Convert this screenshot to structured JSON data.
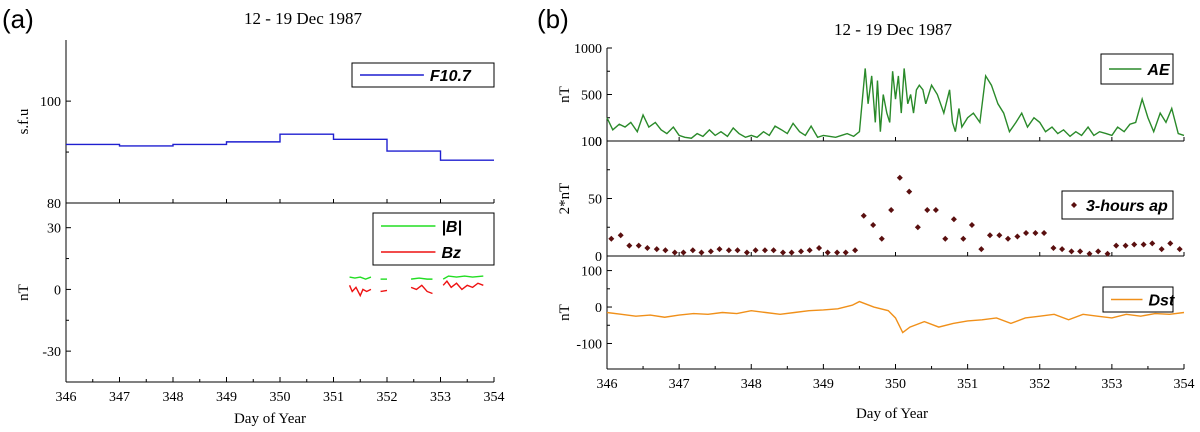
{
  "panels": [
    {
      "letter": "(a)",
      "title": "12 - 19 Dec 1987",
      "xlabel": "Day of Year"
    },
    {
      "letter": "(b)",
      "title": "12 - 19 Dec 1987",
      "xlabel": "Day of Year"
    }
  ],
  "chart_data": [
    {
      "type": "line",
      "panel": "a",
      "ylabel": "s.f.u",
      "xlim": [
        346,
        354
      ],
      "ylim": [
        80,
        112
      ],
      "yticks": [
        80,
        100
      ],
      "legend_position": "top-right",
      "series": [
        {
          "name": "F10.7",
          "color": "#1f1fd0",
          "x": [
            346,
            347,
            347,
            348,
            348,
            349,
            349,
            350,
            350,
            351,
            351,
            352,
            352,
            353,
            353,
            354
          ],
          "y": [
            91.5,
            91.5,
            91.2,
            91.2,
            91.5,
            91.5,
            92,
            92,
            93.5,
            93.5,
            92.5,
            92.5,
            90.2,
            90.2,
            88.4,
            88.4
          ]
        }
      ]
    },
    {
      "type": "line",
      "panel": "a",
      "ylabel": "nT",
      "xlim": [
        346,
        354
      ],
      "ylim": [
        -45,
        42
      ],
      "yticks": [
        -30,
        0,
        30
      ],
      "legend_position": "top-right",
      "series": [
        {
          "name": "|B|",
          "color": "#22dd22",
          "segments": [
            {
              "x": [
                351.3,
                351.4,
                351.5,
                351.6,
                351.7
              ],
              "y": [
                6,
                5.5,
                6,
                5,
                6
              ]
            },
            {
              "x": [
                351.88,
                352.0
              ],
              "y": [
                5,
                5
              ]
            },
            {
              "x": [
                352.45,
                352.6,
                352.75,
                352.85
              ],
              "y": [
                5,
                5.5,
                5,
                5
              ]
            },
            {
              "x": [
                353.05,
                353.15,
                353.3,
                353.45,
                353.6,
                353.8
              ],
              "y": [
                5,
                6.5,
                6,
                6.5,
                6,
                6.5
              ]
            }
          ]
        },
        {
          "name": "Bz",
          "color": "#ee1111",
          "segments": [
            {
              "x": [
                351.3,
                351.35,
                351.42,
                351.5,
                351.55,
                351.62,
                351.7
              ],
              "y": [
                2,
                -1,
                1,
                -3,
                0,
                -1,
                0
              ]
            },
            {
              "x": [
                351.88,
                352.0
              ],
              "y": [
                -1,
                -0.5
              ]
            },
            {
              "x": [
                352.45,
                352.55,
                352.65,
                352.75,
                352.85
              ],
              "y": [
                1,
                0,
                2,
                -1,
                -2
              ]
            },
            {
              "x": [
                353.05,
                353.12,
                353.2,
                353.3,
                353.4,
                353.5,
                353.6,
                353.7,
                353.8
              ],
              "y": [
                2,
                4,
                1,
                3,
                0,
                2,
                1,
                3,
                2
              ]
            }
          ]
        }
      ]
    },
    {
      "type": "line",
      "panel": "b",
      "ylabel": "nT",
      "xlim": [
        346,
        354
      ],
      "ylim": [
        0,
        1000
      ],
      "yticks": [
        0,
        500,
        1000
      ],
      "legend_position": "top-right",
      "series": [
        {
          "name": "AE",
          "color": "#2a8a2a",
          "x": [
            346.0,
            346.08,
            346.17,
            346.25,
            346.33,
            346.42,
            346.5,
            346.58,
            346.67,
            346.75,
            346.83,
            346.92,
            347.0,
            347.08,
            347.17,
            347.25,
            347.33,
            347.42,
            347.5,
            347.58,
            347.67,
            347.75,
            347.83,
            347.92,
            348.0,
            348.08,
            348.17,
            348.25,
            348.33,
            348.42,
            348.5,
            348.58,
            348.67,
            348.75,
            348.83,
            348.92,
            349.0,
            349.08,
            349.17,
            349.25,
            349.33,
            349.42,
            349.5,
            349.58,
            349.62,
            349.67,
            349.72,
            349.75,
            349.79,
            349.83,
            349.88,
            349.92,
            349.96,
            350.0,
            350.04,
            350.08,
            350.12,
            350.17,
            350.21,
            350.25,
            350.29,
            350.33,
            350.38,
            350.42,
            350.5,
            350.58,
            350.67,
            350.75,
            350.79,
            350.83,
            350.88,
            350.92,
            351.0,
            351.08,
            351.17,
            351.25,
            351.33,
            351.42,
            351.5,
            351.58,
            351.67,
            351.75,
            351.83,
            351.92,
            352.0,
            352.08,
            352.17,
            352.25,
            352.33,
            352.42,
            352.5,
            352.58,
            352.67,
            352.75,
            352.83,
            352.92,
            353.0,
            353.08,
            353.17,
            353.25,
            353.33,
            353.42,
            353.5,
            353.58,
            353.67,
            353.75,
            353.83,
            353.92,
            354.0
          ],
          "y": [
            250,
            120,
            180,
            150,
            200,
            100,
            280,
            150,
            200,
            120,
            80,
            150,
            60,
            40,
            30,
            80,
            50,
            120,
            60,
            100,
            50,
            140,
            80,
            40,
            60,
            40,
            100,
            60,
            160,
            120,
            80,
            190,
            100,
            60,
            160,
            40,
            60,
            50,
            40,
            60,
            80,
            50,
            100,
            780,
            400,
            700,
            200,
            650,
            100,
            500,
            300,
            200,
            750,
            450,
            700,
            300,
            780,
            400,
            500,
            300,
            550,
            600,
            550,
            400,
            600,
            500,
            300,
            550,
            200,
            100,
            350,
            150,
            250,
            300,
            200,
            700,
            600,
            400,
            300,
            100,
            200,
            300,
            150,
            250,
            200,
            100,
            150,
            80,
            120,
            50,
            100,
            60,
            150,
            60,
            100,
            80,
            60,
            150,
            100,
            180,
            200,
            450,
            250,
            100,
            300,
            200,
            350,
            80,
            60
          ]
        }
      ]
    },
    {
      "type": "scatter",
      "panel": "b",
      "ylabel": "2*nT",
      "xlim": [
        346,
        354
      ],
      "ylim": [
        0,
        100
      ],
      "yticks": [
        0,
        50,
        100
      ],
      "legend_position": "top-right",
      "series": [
        {
          "name": "3-hours ap",
          "color": "#5a0f0f",
          "x": [
            346.06,
            346.19,
            346.31,
            346.44,
            346.56,
            346.69,
            346.81,
            346.94,
            347.06,
            347.19,
            347.31,
            347.44,
            347.56,
            347.69,
            347.81,
            347.94,
            348.06,
            348.19,
            348.31,
            348.44,
            348.56,
            348.69,
            348.81,
            348.94,
            349.06,
            349.19,
            349.31,
            349.44,
            349.56,
            349.69,
            349.81,
            349.94,
            350.06,
            350.19,
            350.31,
            350.44,
            350.56,
            350.69,
            350.81,
            350.94,
            351.06,
            351.19,
            351.31,
            351.44,
            351.56,
            351.69,
            351.81,
            351.94,
            352.06,
            352.19,
            352.31,
            352.44,
            352.56,
            352.69,
            352.81,
            352.94,
            353.06,
            353.19,
            353.31,
            353.44,
            353.56,
            353.69,
            353.81,
            353.94
          ],
          "y": [
            15,
            18,
            9,
            9,
            7,
            6,
            5,
            3,
            3,
            5,
            3,
            4,
            6,
            5,
            5,
            3,
            5,
            5,
            5,
            3,
            3,
            4,
            5,
            7,
            3,
            3,
            3,
            5,
            35,
            27,
            15,
            40,
            68,
            56,
            25,
            40,
            40,
            15,
            32,
            15,
            27,
            6,
            18,
            18,
            15,
            17,
            20,
            20,
            20,
            7,
            6,
            4,
            4,
            2,
            4,
            2,
            9,
            9,
            10,
            10,
            11,
            6,
            11,
            6
          ]
        }
      ]
    },
    {
      "type": "line",
      "panel": "b",
      "ylabel": "nT",
      "xlim": [
        346,
        354
      ],
      "ylim": [
        -170,
        140
      ],
      "yticks": [
        -100,
        0,
        100
      ],
      "legend_position": "top-right",
      "series": [
        {
          "name": "Dst",
          "color": "#f0901a",
          "x": [
            346.0,
            346.2,
            346.4,
            346.6,
            346.8,
            347.0,
            347.2,
            347.4,
            347.6,
            347.8,
            348.0,
            348.2,
            348.4,
            348.6,
            348.8,
            349.0,
            349.2,
            349.4,
            349.5,
            349.7,
            349.9,
            350.0,
            350.1,
            350.2,
            350.4,
            350.6,
            350.8,
            351.0,
            351.2,
            351.4,
            351.6,
            351.8,
            352.0,
            352.2,
            352.4,
            352.6,
            352.8,
            353.0,
            353.2,
            353.4,
            353.6,
            353.8,
            354.0
          ],
          "y": [
            -15,
            -20,
            -25,
            -22,
            -28,
            -22,
            -18,
            -20,
            -15,
            -18,
            -10,
            -15,
            -20,
            -15,
            -10,
            -8,
            -5,
            5,
            15,
            0,
            -10,
            -30,
            -70,
            -55,
            -40,
            -55,
            -45,
            -38,
            -35,
            -30,
            -45,
            -30,
            -25,
            -20,
            -35,
            -20,
            -25,
            -30,
            -20,
            -25,
            -18,
            -20,
            -15
          ]
        }
      ]
    }
  ]
}
